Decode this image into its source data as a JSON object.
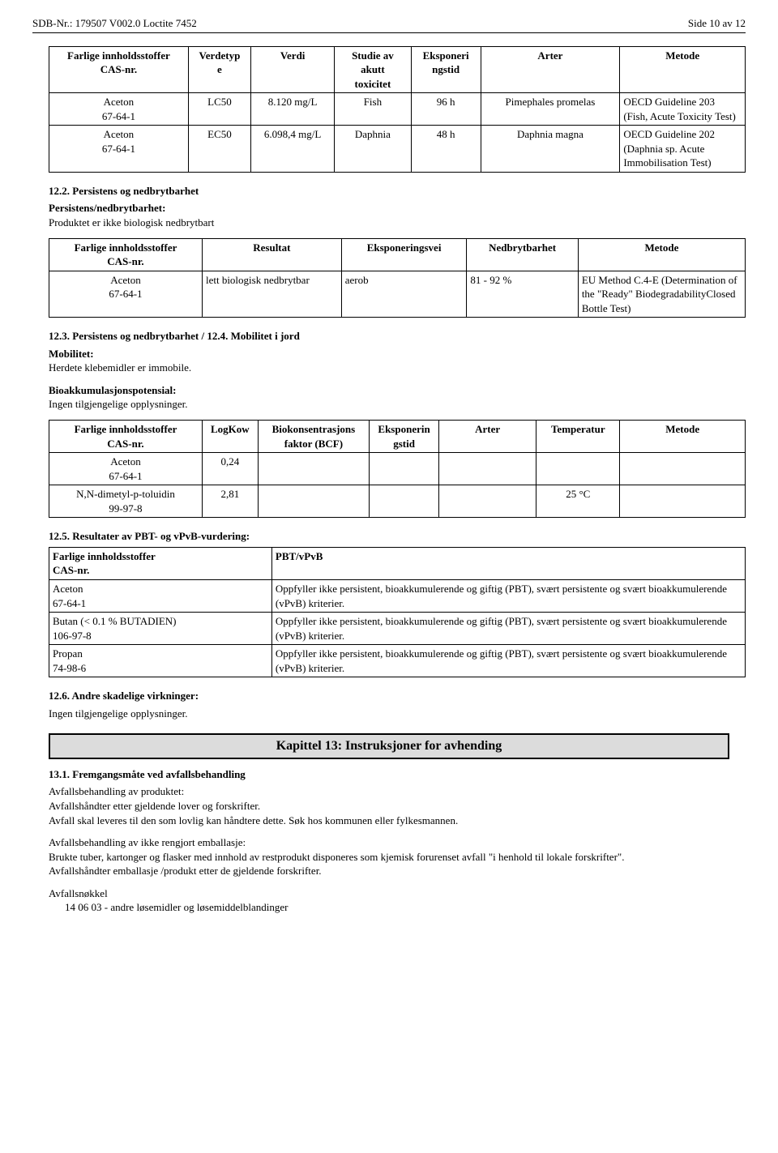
{
  "header": {
    "left": "SDB-Nr.: 179507  V002.0  Loctite 7452",
    "right": "Side 10 av 12"
  },
  "table1": {
    "headers": [
      "Farlige innholdsstoffer\nCAS-nr.",
      "Verdetyp\ne",
      "Verdi",
      "Studie av\nakutt\ntoxicitet",
      "Eksponeri\nngstid",
      "Arter",
      "Metode"
    ],
    "widths": [
      "20%",
      "9%",
      "12%",
      "11%",
      "10%",
      "20%",
      "18%"
    ],
    "rows": [
      [
        "Aceton\n67-64-1",
        "LC50",
        "8.120 mg/L",
        "Fish",
        "96 h",
        "Pimephales promelas",
        "OECD Guideline 203 (Fish, Acute Toxicity Test)"
      ],
      [
        "Aceton\n67-64-1",
        "EC50",
        "6.098,4 mg/L",
        "Daphnia",
        "48 h",
        "Daphnia magna",
        "OECD Guideline 202 (Daphnia sp. Acute Immobilisation Test)"
      ]
    ]
  },
  "s122": {
    "title": "12.2. Persistens og nedbrytbarhet",
    "sub_bold": "Persistens/nedbrytbarhet:",
    "sub_text": "Produktet er ikke biologisk nedbrytbart"
  },
  "table2": {
    "headers": [
      "Farlige innholdsstoffer\nCAS-nr.",
      "Resultat",
      "Eksponeringsvei",
      "Nedbrytbarhet",
      "Metode"
    ],
    "widths": [
      "22%",
      "20%",
      "18%",
      "16%",
      "24%"
    ],
    "rows": [
      [
        "Aceton\n67-64-1",
        "lett biologisk nedbrytbar",
        "aerob",
        "81 - 92 %",
        "EU Method C.4-E (Determination of the \"Ready\" BiodegradabilityClosed Bottle Test)"
      ]
    ]
  },
  "s123": {
    "title": "12.3. Persistens og nedbrytbarhet / 12.4. Mobilitet i jord",
    "mob_bold": "Mobilitet:",
    "mob_text": "Herdete klebemidler er immobile.",
    "bio_bold": "Bioakkumulasjonspotensial:",
    "bio_text": "Ingen tilgjengelige opplysninger."
  },
  "table3": {
    "headers": [
      "Farlige innholdsstoffer\nCAS-nr.",
      "LogKow",
      "Biokonsentrasjons\nfaktor (BCF)",
      "Eksponerin\ngstid",
      "Arter",
      "Temperatur",
      "Metode"
    ],
    "widths": [
      "22%",
      "8%",
      "16%",
      "10%",
      "14%",
      "12%",
      "18%"
    ],
    "rows": [
      [
        "Aceton\n67-64-1",
        "0,24",
        "",
        "",
        "",
        "",
        ""
      ],
      [
        "N,N-dimetyl-p-toluidin\n99-97-8",
        "2,81",
        "",
        "",
        "",
        "25 °C",
        ""
      ]
    ]
  },
  "s125": {
    "title": "12.5. Resultater av PBT- og vPvB-vurdering:"
  },
  "table4": {
    "headers": [
      "Farlige innholdsstoffer\nCAS-nr.",
      "PBT/vPvB"
    ],
    "widths": [
      "32%",
      "68%"
    ],
    "rows": [
      [
        "Aceton\n67-64-1",
        "Oppfyller ikke persistent, bioakkumulerende og giftig (PBT), svært persistente og svært bioakkumulerende (vPvB) kriterier."
      ],
      [
        "Butan (< 0.1 % BUTADIEN)\n106-97-8",
        "Oppfyller ikke persistent, bioakkumulerende og giftig (PBT), svært persistente og svært bioakkumulerende (vPvB) kriterier."
      ],
      [
        "Propan\n74-98-6",
        "Oppfyller ikke persistent, bioakkumulerende og giftig (PBT), svært persistente og svært bioakkumulerende (vPvB) kriterier."
      ]
    ]
  },
  "s126": {
    "title": "12.6. Andre skadelige virkninger:",
    "text": "Ingen tilgjengelige opplysninger."
  },
  "chapter13": {
    "title": "Kapittel 13: Instruksjoner for avhending"
  },
  "s131": {
    "title": "13.1. Fremgangsmåte ved avfallsbehandling",
    "p1a": "Avfallsbehandling av produktet:",
    "p1b": "Avfallshåndter etter gjeldende lover og forskrifter.",
    "p1c": "Avfall skal leveres til den som lovlig kan håndtere dette. Søk hos kommunen eller fylkesmannen.",
    "p2a": "Avfallsbehandling av ikke rengjort emballasje:",
    "p2b": "Brukte tuber, kartonger og flasker med innhold av restprodukt disponeres som kjemisk forurenset avfall \"i henhold til lokale forskrifter\".",
    "p2c": "Avfallshåndter emballasje /produkt etter de gjeldende forskrifter.",
    "p3a": "Avfallsnøkkel",
    "p3b": "14 06 03 - andre løsemidler og løsemiddelblandinger"
  }
}
